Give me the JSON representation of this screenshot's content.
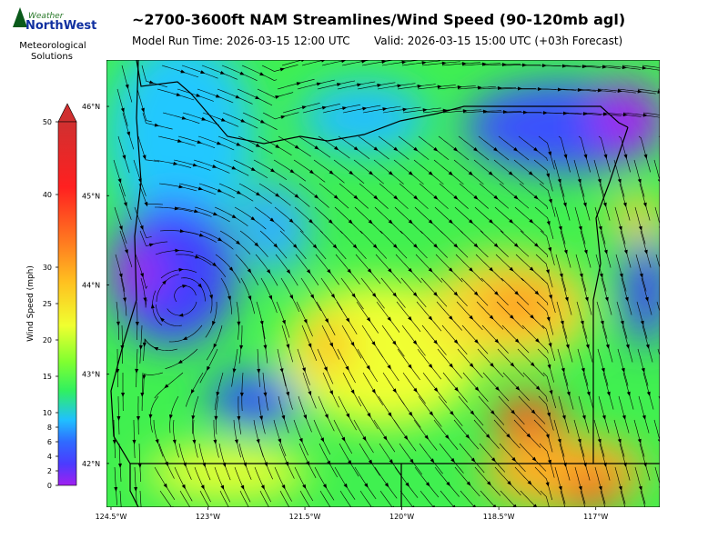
{
  "logo": {
    "brand_top": "Weather",
    "brand_main": "NorthWest",
    "line1": "Meteorological",
    "line2": "Solutions"
  },
  "header": {
    "title": "~2700-3600ft NAM Streamlines/Wind Speed (90-120mb agl)",
    "model_run": "Model Run Time: 2026-03-15 12:00 UTC",
    "valid": "Valid: 2026-03-15 15:00 UTC  (+03h Forecast)"
  },
  "colorbar": {
    "label": "Wind Speed (mph)",
    "lim": [
      0,
      50
    ],
    "ticks": [
      0,
      2,
      4,
      6,
      8,
      10,
      15,
      20,
      25,
      30,
      40,
      50
    ]
  },
  "map": {
    "lonlim": [
      -124.57,
      -116.01
    ],
    "latlim": [
      41.51,
      46.52
    ],
    "lon_ticks": [
      {
        "value": -124.5,
        "label": "124.5°W"
      },
      {
        "value": -123,
        "label": "123°W"
      },
      {
        "value": -121.5,
        "label": "121.5°W"
      },
      {
        "value": -120,
        "label": "120°W"
      },
      {
        "value": -118.5,
        "label": "118.5°W"
      },
      {
        "value": -117,
        "label": "117°W"
      }
    ],
    "lat_ticks": [
      {
        "value": 46,
        "label": "46°N"
      },
      {
        "value": 45,
        "label": "45°N"
      },
      {
        "value": 44,
        "label": "44°N"
      },
      {
        "value": 43,
        "label": "43°N"
      },
      {
        "value": 42,
        "label": "42°N"
      }
    ]
  }
}
